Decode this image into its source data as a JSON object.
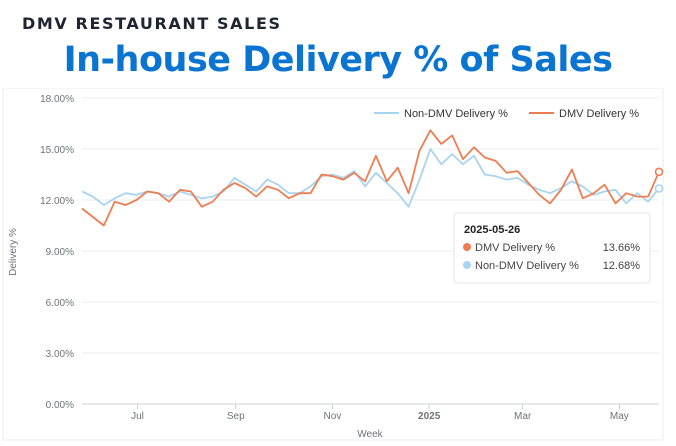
{
  "header": {
    "kicker": "DMV RESTAURANT SALES",
    "title": "In-house Delivery % of Sales"
  },
  "chart_data": {
    "type": "line",
    "xlabel": "Week",
    "ylabel": "Delivery %",
    "ylim": [
      0,
      18
    ],
    "y_ticks": [
      "0.00%",
      "3.00%",
      "6.00%",
      "9.00%",
      "12.00%",
      "15.00%",
      "18.00%"
    ],
    "x_ticks": [
      {
        "label": "Jul",
        "date": "2024-07-01"
      },
      {
        "label": "Sep",
        "date": "2024-09-01"
      },
      {
        "label": "Nov",
        "date": "2024-11-01"
      },
      {
        "label": "2025",
        "date": "2025-01-01"
      },
      {
        "label": "Mar",
        "date": "2025-03-01"
      },
      {
        "label": "May",
        "date": "2025-05-01"
      }
    ],
    "x_start": "2024-05-27",
    "x_end": "2025-05-26",
    "grid": true,
    "legend_position": "top-right",
    "series": [
      {
        "name": "Non-DMV Delivery %",
        "color": "#a9d4ef",
        "values": [
          12.5,
          12.2,
          11.7,
          12.1,
          12.4,
          12.3,
          12.5,
          12.4,
          12.2,
          12.5,
          12.3,
          12.1,
          12.2,
          12.5,
          13.3,
          12.9,
          12.5,
          13.2,
          12.9,
          12.4,
          12.4,
          12.8,
          13.4,
          13.5,
          13.3,
          13.7,
          12.8,
          13.6,
          13.0,
          12.4,
          11.6,
          13.2,
          15.0,
          14.1,
          14.7,
          14.1,
          14.6,
          13.5,
          13.4,
          13.2,
          13.3,
          12.9,
          12.6,
          12.4,
          12.7,
          13.1,
          12.8,
          12.3,
          12.5,
          12.6,
          11.8,
          12.4,
          11.9,
          12.68
        ]
      },
      {
        "name": "DMV Delivery %",
        "color": "#ef7d52",
        "values": [
          11.5,
          11.0,
          10.5,
          11.9,
          11.7,
          12.0,
          12.5,
          12.4,
          11.9,
          12.6,
          12.5,
          11.6,
          11.9,
          12.6,
          13.0,
          12.7,
          12.2,
          12.8,
          12.6,
          12.1,
          12.4,
          12.4,
          13.5,
          13.4,
          13.2,
          13.6,
          13.1,
          14.6,
          13.1,
          13.9,
          12.4,
          14.9,
          16.1,
          15.3,
          15.8,
          14.4,
          15.1,
          14.5,
          14.3,
          13.6,
          13.7,
          13.0,
          12.3,
          11.8,
          12.6,
          13.8,
          12.1,
          12.4,
          12.9,
          11.8,
          12.4,
          12.2,
          12.2,
          13.66
        ]
      }
    ],
    "tooltip": {
      "date": "2025-05-26",
      "rows": [
        {
          "name": "DMV Delivery %",
          "value": "13.66%",
          "color": "#ef7d52"
        },
        {
          "name": "Non-DMV Delivery %",
          "value": "12.68%",
          "color": "#a9d4ef"
        }
      ]
    }
  }
}
